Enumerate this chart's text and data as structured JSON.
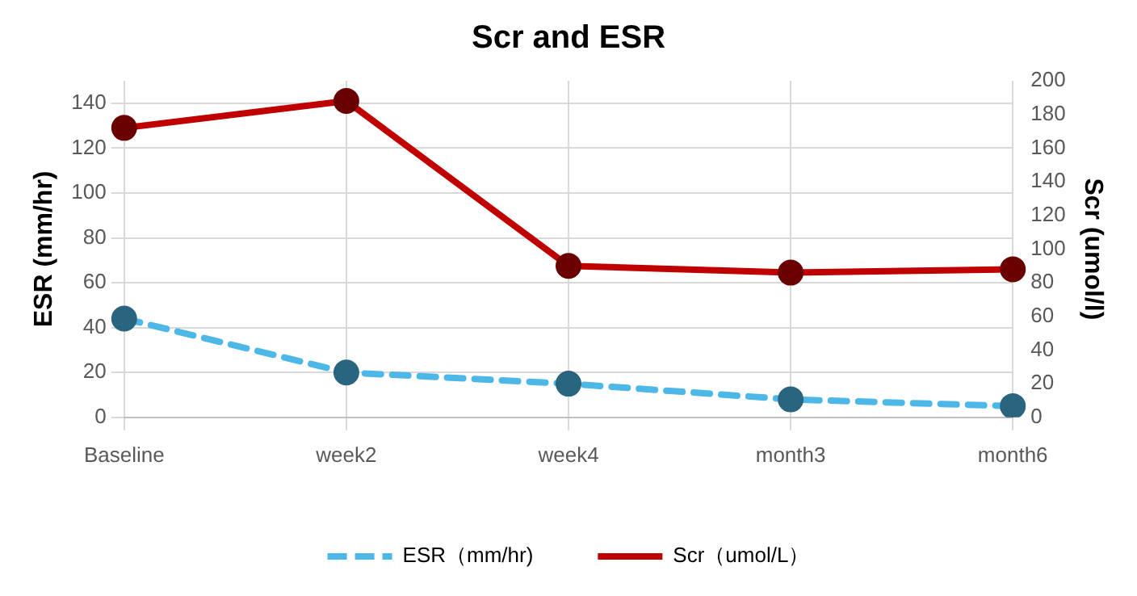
{
  "chart_data": {
    "type": "line",
    "title": "Scr and ESR",
    "ylabel": "ESR (mm/hr)",
    "y2label": "Scr (umol/l)",
    "categories": [
      "Baseline",
      "week2",
      "week4",
      "month3",
      "month6"
    ],
    "series": [
      {
        "name": "ESR（mm/hr)",
        "color": "#4db8e8",
        "values": [
          44,
          20,
          15,
          8,
          5
        ],
        "line_style": "dashed"
      },
      {
        "name": "Scr（umol/L）",
        "color": "#c00000",
        "values": [
          172,
          188,
          90,
          86,
          88
        ],
        "axis": "y2",
        "line_style": "solid"
      }
    ],
    "ylim": [
      0,
      150
    ],
    "yticks": [
      0,
      20,
      40,
      60,
      80,
      100,
      120,
      140
    ],
    "y2lim": [
      0,
      200
    ],
    "y2ticks": [
      0,
      20,
      40,
      60,
      80,
      100,
      120,
      140,
      160,
      180,
      200
    ],
    "grid": true,
    "legend": "bottom",
    "marker": "circle"
  }
}
